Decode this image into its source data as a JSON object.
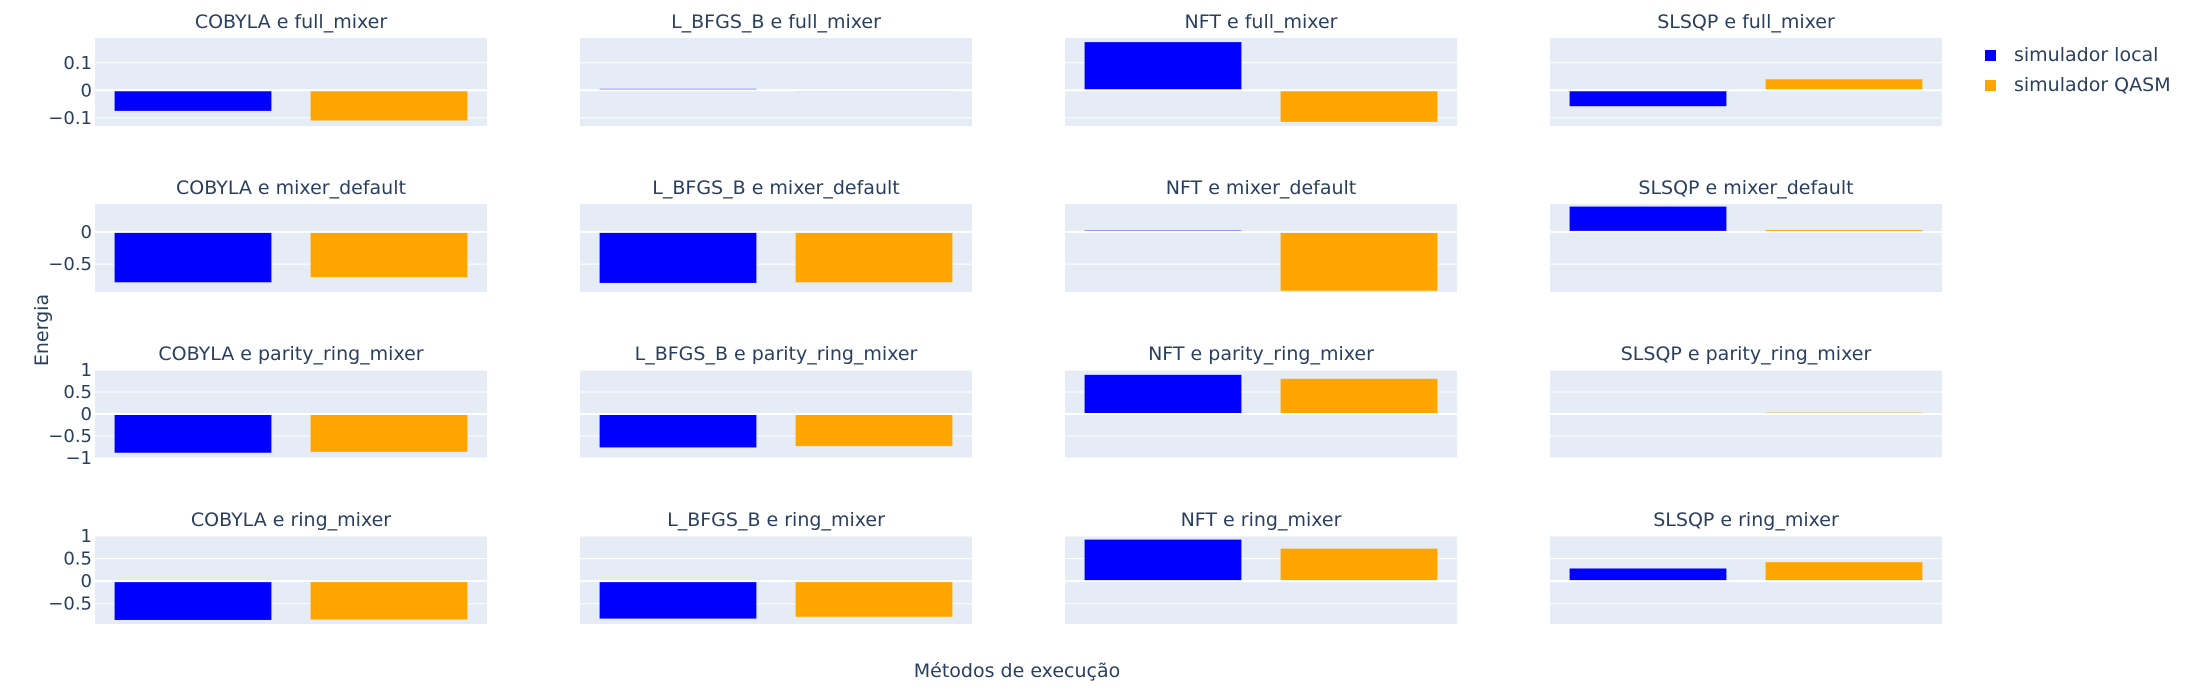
{
  "colors": {
    "series_0": "#0000ff",
    "series_1": "#ffa500",
    "plot_bg": "#e5ecf6",
    "text": "#2a3f5f"
  },
  "chart_data": {
    "type": "bar",
    "layout": "small-multiples 4x4",
    "xlabel": "Métodos de execução",
    "ylabel": "Energia",
    "legend": {
      "placement": "top-right",
      "entries": [
        "simulador local",
        "simulador QASM"
      ]
    },
    "grid": true,
    "series_names": [
      "simulador local",
      "simulador QASM"
    ],
    "row_axes": [
      {
        "ylim": [
          -0.13,
          0.19
        ],
        "ticks": [
          0.1,
          0,
          -0.1
        ],
        "tick_labels": [
          "0.1",
          "0",
          "−0.1"
        ]
      },
      {
        "ylim": [
          -0.93,
          0.43
        ],
        "ticks": [
          0,
          -0.5
        ],
        "tick_labels": [
          "0",
          "−0.5"
        ]
      },
      {
        "ylim": [
          -1.0,
          1.0
        ],
        "ticks": [
          1,
          0.5,
          0,
          -0.5,
          -1
        ],
        "tick_labels": [
          "1",
          "0.5",
          "0",
          "−0.5",
          "−1"
        ]
      },
      {
        "ylim": [
          -0.95,
          1.0
        ],
        "ticks": [
          1,
          0.5,
          0,
          -0.5
        ],
        "tick_labels": [
          "1",
          "0.5",
          "0",
          "−0.5"
        ]
      }
    ],
    "panels": [
      {
        "title": "COBYLA e full_mixer",
        "row": 0,
        "col": 0,
        "values": [
          -0.075,
          -0.11
        ]
      },
      {
        "title": "L_BFGS_B e full_mixer",
        "row": 0,
        "col": 1,
        "values": [
          0.005,
          -0.004
        ]
      },
      {
        "title": "NFT e full_mixer",
        "row": 0,
        "col": 2,
        "values": [
          0.175,
          -0.115
        ]
      },
      {
        "title": "SLSQP e full_mixer",
        "row": 0,
        "col": 3,
        "values": [
          -0.058,
          0.04
        ]
      },
      {
        "title": "COBYLA e mixer_default",
        "row": 1,
        "col": 0,
        "values": [
          -0.78,
          -0.7
        ]
      },
      {
        "title": "L_BFGS_B e mixer_default",
        "row": 1,
        "col": 1,
        "values": [
          -0.79,
          -0.78
        ]
      },
      {
        "title": "NFT e mixer_default",
        "row": 1,
        "col": 2,
        "values": [
          0.02,
          -0.91
        ]
      },
      {
        "title": "SLSQP e mixer_default",
        "row": 1,
        "col": 3,
        "values": [
          0.39,
          0.03
        ]
      },
      {
        "title": "COBYLA e parity_ring_mixer",
        "row": 2,
        "col": 0,
        "values": [
          -0.88,
          -0.86
        ]
      },
      {
        "title": "L_BFGS_B e parity_ring_mixer",
        "row": 2,
        "col": 1,
        "values": [
          -0.76,
          -0.73
        ]
      },
      {
        "title": "NFT e parity_ring_mixer",
        "row": 2,
        "col": 2,
        "values": [
          0.89,
          0.8
        ]
      },
      {
        "title": "SLSQP e parity_ring_mixer",
        "row": 2,
        "col": 3,
        "values": [
          0.01,
          0.03
        ]
      },
      {
        "title": "COBYLA e ring_mixer",
        "row": 3,
        "col": 0,
        "values": [
          -0.86,
          -0.85
        ]
      },
      {
        "title": "L_BFGS_B e ring_mixer",
        "row": 3,
        "col": 1,
        "values": [
          -0.83,
          -0.79
        ]
      },
      {
        "title": "NFT e ring_mixer",
        "row": 3,
        "col": 2,
        "values": [
          0.92,
          0.72
        ]
      },
      {
        "title": "SLSQP e ring_mixer",
        "row": 3,
        "col": 3,
        "values": [
          0.28,
          0.42
        ]
      }
    ]
  }
}
